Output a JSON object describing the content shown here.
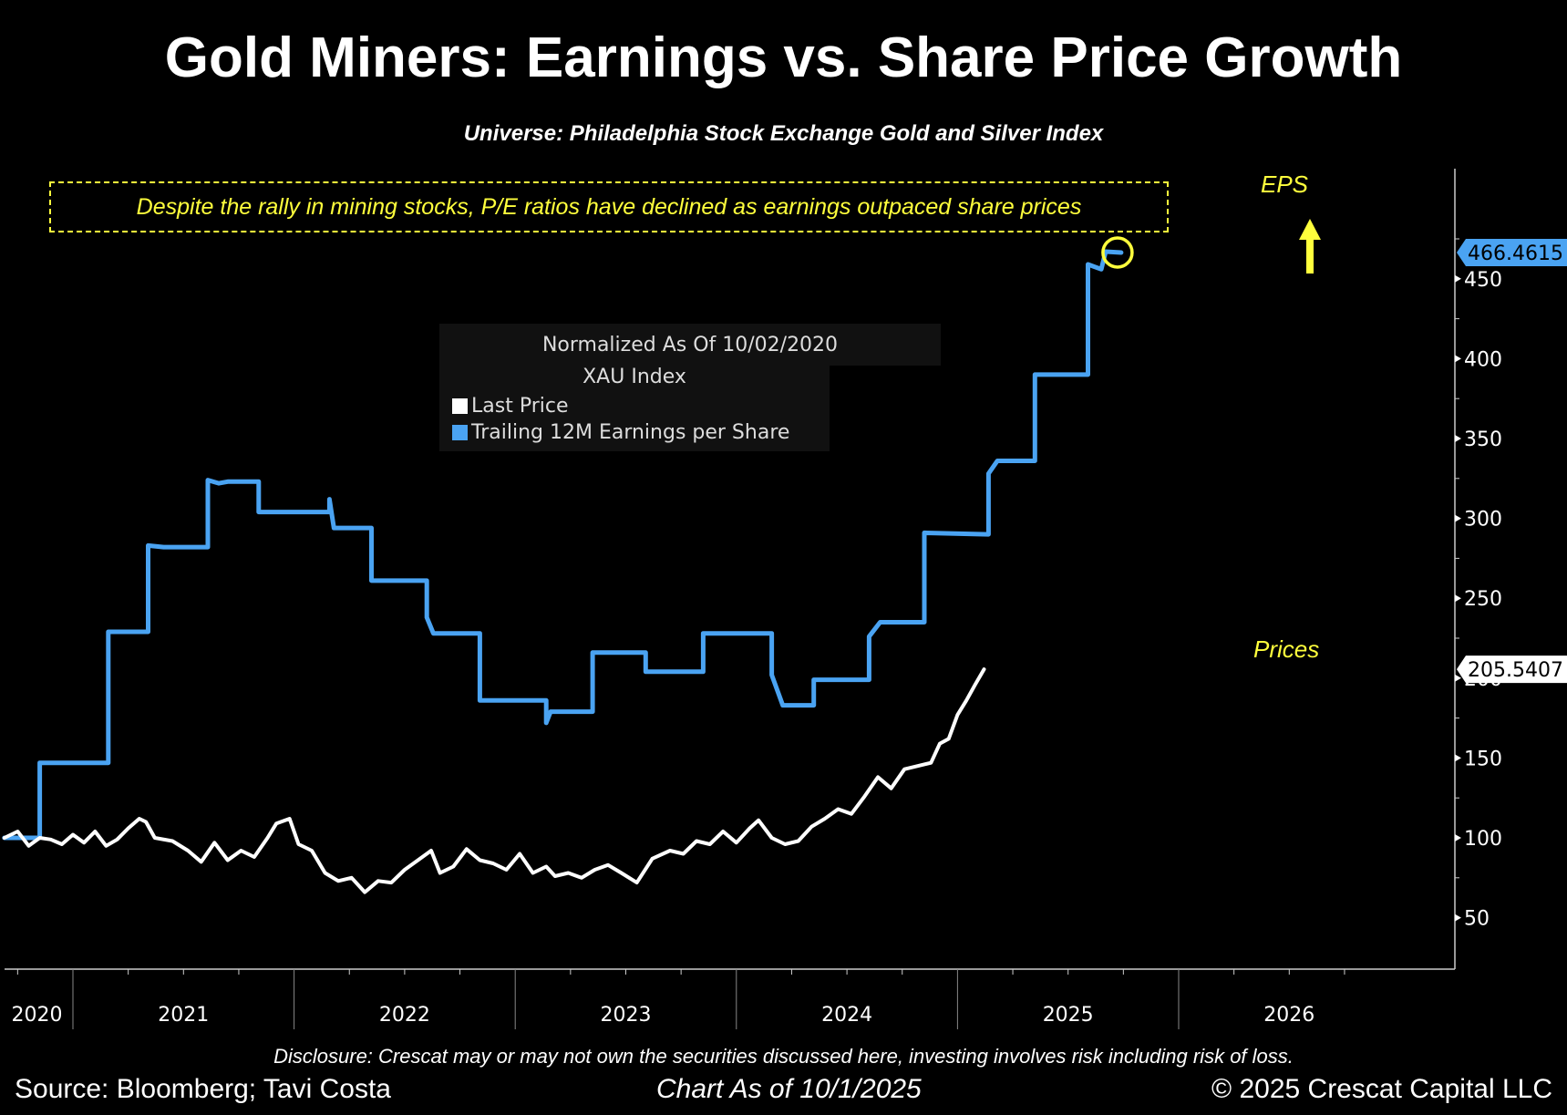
{
  "header": {
    "title": "Gold Miners: Earnings vs. Share Price Growth",
    "subtitle": "Universe: Philadelphia Stock Exchange Gold and Silver Index"
  },
  "callout": "Despite the rally in mining stocks, P/E ratios have declined as earnings outpaced share prices",
  "annotations": {
    "eps_label": "EPS",
    "prices_label": "Prices",
    "eps_last_value": "466.4615",
    "price_last_value": "205.5407"
  },
  "legend": {
    "header": "Normalized As Of 10/02/2020",
    "index": "XAU Index",
    "items": [
      {
        "label": "Last Price",
        "color": "#ffffff"
      },
      {
        "label": "Trailing 12M Earnings per Share",
        "color": "#4aa3f2"
      }
    ]
  },
  "footer": {
    "disclosure": "Disclosure: Crescat may or may not own the securities discussed here, investing involves risk including risk of loss.",
    "source": "Source: Bloomberg; Tavi Costa",
    "as_of": "Chart As of 10/1/2025",
    "copyright": "© 2025 Crescat Capital LLC"
  },
  "colors": {
    "background": "#000000",
    "eps": "#4aa3f2",
    "price": "#ffffff",
    "accent": "#ffff3c"
  },
  "chart_data": {
    "type": "line",
    "title": "Normalized As Of 10/02/2020",
    "xlabel": "",
    "ylabel": "",
    "xlim": [
      2020.69,
      2026.66
    ],
    "ylim": [
      25,
      480
    ],
    "x_ticks": [
      "2020",
      "2021",
      "2022",
      "2023",
      "2024",
      "2025",
      "2026"
    ],
    "y_ticks": [
      50,
      100,
      150,
      200,
      250,
      300,
      350,
      400,
      450
    ],
    "legend_position": "top-center",
    "grid": false,
    "series": [
      {
        "name": "Trailing 12M Earnings per Share",
        "step": true,
        "points": [
          [
            2020.69,
            100
          ],
          [
            2020.85,
            100
          ],
          [
            2020.85,
            147
          ],
          [
            2021.16,
            147
          ],
          [
            2021.16,
            229
          ],
          [
            2021.34,
            229
          ],
          [
            2021.34,
            283
          ],
          [
            2021.41,
            282
          ],
          [
            2021.61,
            282
          ],
          [
            2021.61,
            324
          ],
          [
            2021.66,
            322
          ],
          [
            2021.7,
            323
          ],
          [
            2021.84,
            323
          ],
          [
            2021.84,
            304
          ],
          [
            2022.16,
            304
          ],
          [
            2022.16,
            312
          ],
          [
            2022.18,
            294
          ],
          [
            2022.35,
            294
          ],
          [
            2022.35,
            261
          ],
          [
            2022.6,
            261
          ],
          [
            2022.6,
            238
          ],
          [
            2022.63,
            228
          ],
          [
            2022.84,
            228
          ],
          [
            2022.84,
            186
          ],
          [
            2023.14,
            186
          ],
          [
            2023.14,
            172
          ],
          [
            2023.16,
            179
          ],
          [
            2023.35,
            179
          ],
          [
            2023.35,
            216
          ],
          [
            2023.59,
            216
          ],
          [
            2023.59,
            204
          ],
          [
            2023.85,
            204
          ],
          [
            2023.85,
            228
          ],
          [
            2024.16,
            228
          ],
          [
            2024.16,
            202
          ],
          [
            2024.21,
            183
          ],
          [
            2024.35,
            183
          ],
          [
            2024.35,
            199
          ],
          [
            2024.6,
            199
          ],
          [
            2024.6,
            226
          ],
          [
            2024.65,
            235
          ],
          [
            2024.85,
            235
          ],
          [
            2024.85,
            291
          ],
          [
            2025.14,
            290
          ],
          [
            2025.14,
            328
          ],
          [
            2025.18,
            336
          ],
          [
            2025.35,
            336
          ],
          [
            2025.35,
            390
          ],
          [
            2025.59,
            390
          ],
          [
            2025.59,
            459
          ],
          [
            2025.65,
            456
          ],
          [
            2025.67,
            467
          ],
          [
            2025.74,
            466.4615
          ]
        ]
      },
      {
        "name": "Last Price",
        "step": false,
        "points": [
          [
            2020.69,
            100
          ],
          [
            2020.75,
            104
          ],
          [
            2020.8,
            95
          ],
          [
            2020.85,
            100
          ],
          [
            2020.9,
            99
          ],
          [
            2020.95,
            96
          ],
          [
            2021.0,
            102
          ],
          [
            2021.05,
            97
          ],
          [
            2021.1,
            104
          ],
          [
            2021.15,
            95
          ],
          [
            2021.2,
            99
          ],
          [
            2021.25,
            106
          ],
          [
            2021.3,
            112
          ],
          [
            2021.33,
            110
          ],
          [
            2021.37,
            100
          ],
          [
            2021.45,
            98
          ],
          [
            2021.52,
            92
          ],
          [
            2021.58,
            85
          ],
          [
            2021.64,
            97
          ],
          [
            2021.7,
            86
          ],
          [
            2021.76,
            92
          ],
          [
            2021.82,
            88
          ],
          [
            2021.88,
            100
          ],
          [
            2021.92,
            109
          ],
          [
            2021.98,
            112
          ],
          [
            2022.02,
            96
          ],
          [
            2022.08,
            92
          ],
          [
            2022.14,
            78
          ],
          [
            2022.2,
            73
          ],
          [
            2022.26,
            75
          ],
          [
            2022.32,
            66
          ],
          [
            2022.38,
            73
          ],
          [
            2022.44,
            72
          ],
          [
            2022.5,
            80
          ],
          [
            2022.56,
            86
          ],
          [
            2022.62,
            92
          ],
          [
            2022.66,
            78
          ],
          [
            2022.72,
            82
          ],
          [
            2022.78,
            93
          ],
          [
            2022.84,
            86
          ],
          [
            2022.9,
            84
          ],
          [
            2022.96,
            80
          ],
          [
            2023.02,
            90
          ],
          [
            2023.08,
            78
          ],
          [
            2023.14,
            82
          ],
          [
            2023.18,
            76
          ],
          [
            2023.24,
            78
          ],
          [
            2023.3,
            75
          ],
          [
            2023.36,
            80
          ],
          [
            2023.42,
            83
          ],
          [
            2023.48,
            78
          ],
          [
            2023.55,
            72
          ],
          [
            2023.62,
            87
          ],
          [
            2023.7,
            92
          ],
          [
            2023.76,
            90
          ],
          [
            2023.82,
            98
          ],
          [
            2023.88,
            96
          ],
          [
            2023.94,
            104
          ],
          [
            2024.0,
            97
          ],
          [
            2024.06,
            106
          ],
          [
            2024.1,
            111
          ],
          [
            2024.16,
            100
          ],
          [
            2024.22,
            96
          ],
          [
            2024.28,
            98
          ],
          [
            2024.34,
            107
          ],
          [
            2024.4,
            112
          ],
          [
            2024.46,
            118
          ],
          [
            2024.52,
            115
          ],
          [
            2024.58,
            126
          ],
          [
            2024.64,
            138
          ],
          [
            2024.7,
            131
          ],
          [
            2024.76,
            143
          ],
          [
            2024.82,
            145
          ],
          [
            2024.88,
            147
          ],
          [
            2024.92,
            159
          ],
          [
            2024.96,
            162
          ],
          [
            2025.0,
            177
          ],
          [
            2025.04,
            186
          ],
          [
            2025.08,
            196
          ],
          [
            2025.12,
            205.5407
          ]
        ]
      }
    ]
  }
}
